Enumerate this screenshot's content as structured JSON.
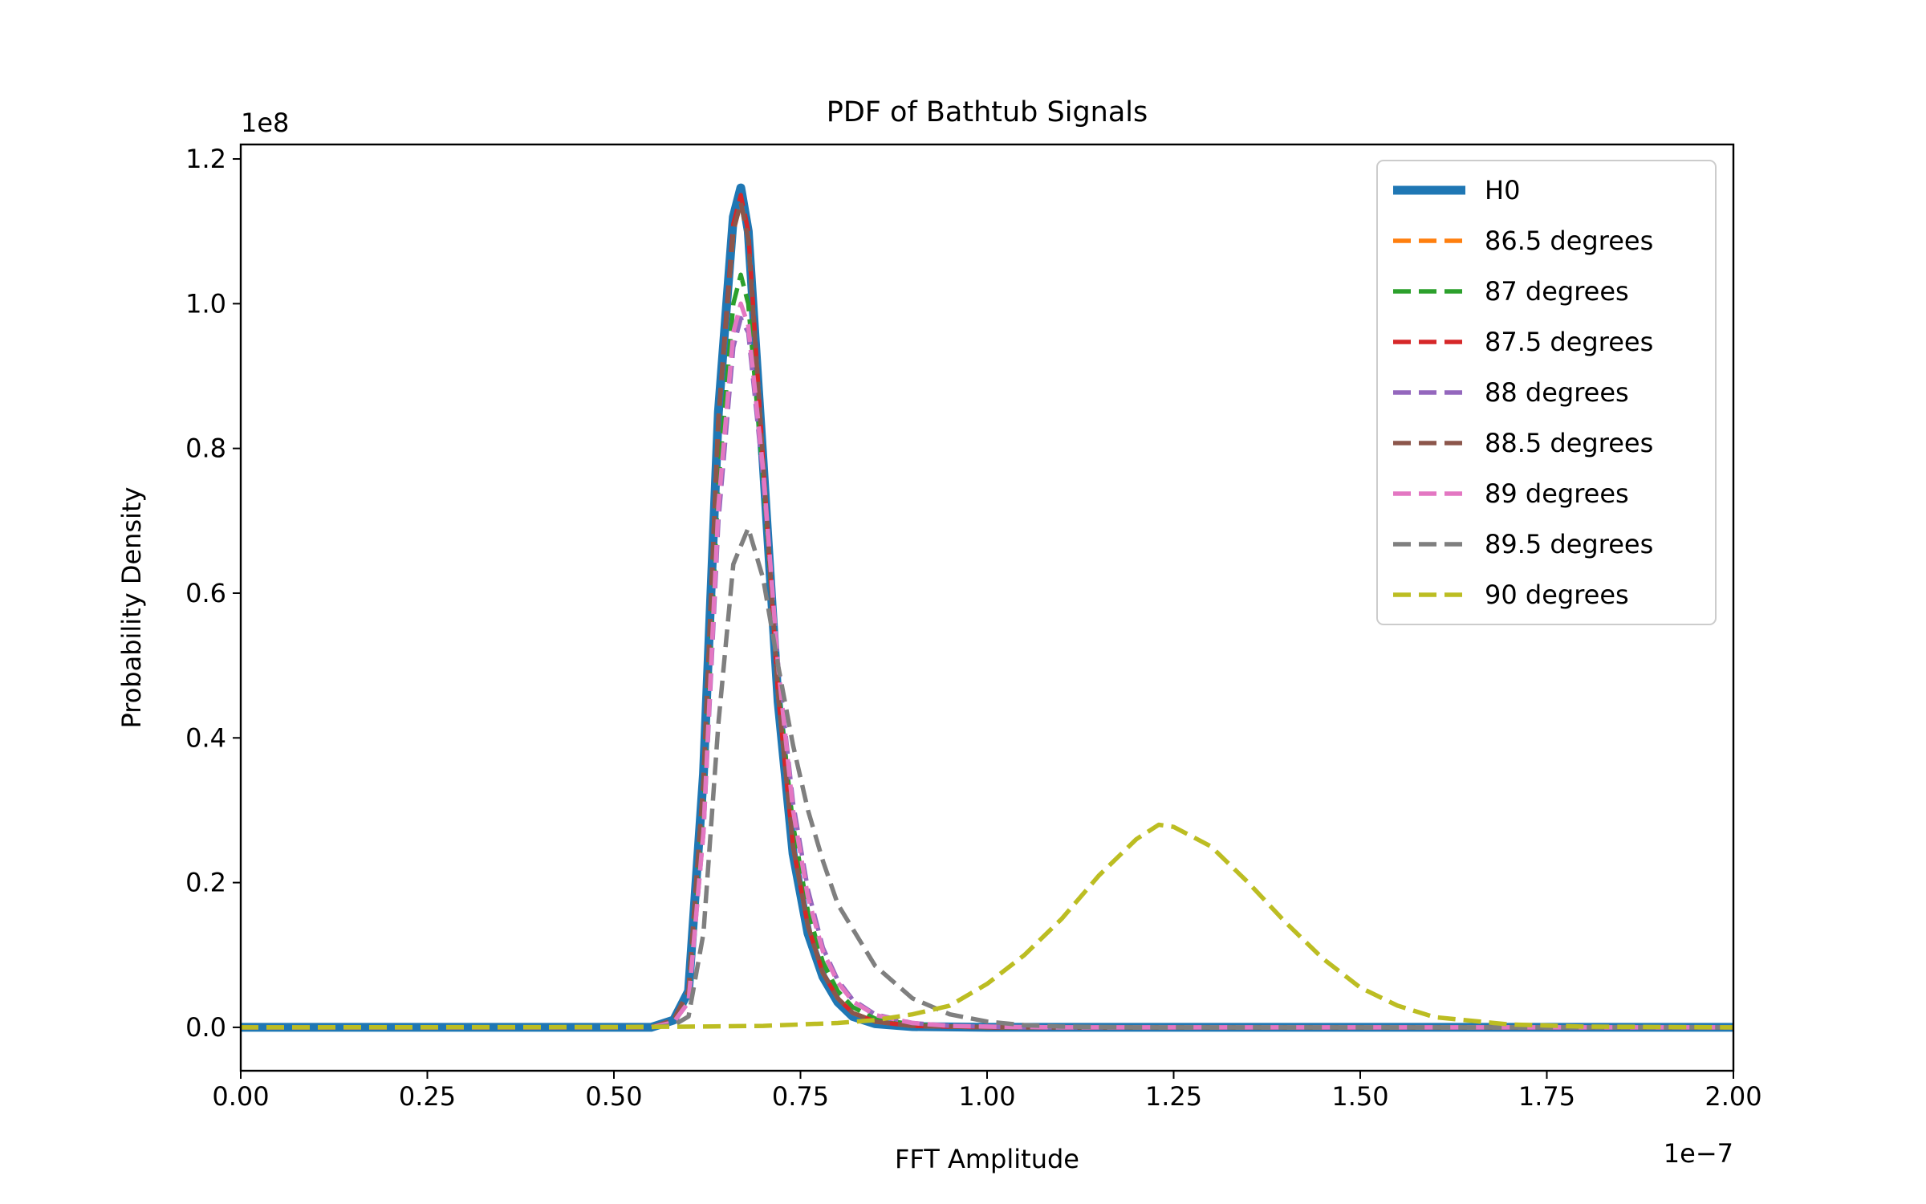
{
  "chart_data": {
    "type": "line",
    "title": "PDF of Bathtub Signals",
    "xlabel": "FFT Amplitude",
    "ylabel": "Probability Density",
    "x_offset_label": "1e−7",
    "y_offset_label": "1e8",
    "xlim": [
      0,
      2.0
    ],
    "ylim": [
      -0.06,
      1.22
    ],
    "xticks": [
      0,
      0.25,
      0.5,
      0.75,
      1.0,
      1.25,
      1.5,
      1.75,
      2.0
    ],
    "xtick_labels": [
      "0.00",
      "0.25",
      "0.50",
      "0.75",
      "1.00",
      "1.25",
      "1.50",
      "1.75",
      "2.00"
    ],
    "yticks": [
      0.0,
      0.2,
      0.4,
      0.6,
      0.8,
      1.0,
      1.2
    ],
    "ytick_labels": [
      "0.0",
      "0.2",
      "0.4",
      "0.6",
      "0.8",
      "1.0",
      "1.2"
    ],
    "grid": false,
    "legend_position": "upper right",
    "series": [
      {
        "name": "H0",
        "color": "#1f77b4",
        "style": "solid",
        "x": [
          0,
          0.55,
          0.58,
          0.6,
          0.62,
          0.64,
          0.66,
          0.67,
          0.68,
          0.7,
          0.72,
          0.74,
          0.76,
          0.78,
          0.8,
          0.82,
          0.85,
          0.9,
          1.0,
          2.0
        ],
        "y": [
          0,
          0,
          0.01,
          0.05,
          0.35,
          0.85,
          1.12,
          1.16,
          1.1,
          0.78,
          0.45,
          0.24,
          0.13,
          0.07,
          0.035,
          0.015,
          0.005,
          0.001,
          0,
          0
        ]
      },
      {
        "name": "86.5 degrees",
        "color": "#ff7f0e",
        "style": "dashed",
        "x": [
          0,
          0.55,
          0.58,
          0.6,
          0.62,
          0.64,
          0.66,
          0.67,
          0.68,
          0.7,
          0.72,
          0.74,
          0.76,
          0.78,
          0.8,
          0.82,
          0.85,
          0.9,
          0.95,
          1.0,
          2.0
        ],
        "y": [
          0,
          0,
          0.01,
          0.05,
          0.34,
          0.84,
          1.1,
          1.14,
          1.09,
          0.78,
          0.46,
          0.25,
          0.14,
          0.075,
          0.04,
          0.02,
          0.008,
          0.002,
          0.001,
          0,
          0
        ]
      },
      {
        "name": "87 degrees",
        "color": "#2ca02c",
        "style": "dashed",
        "x": [
          0,
          0.55,
          0.58,
          0.6,
          0.62,
          0.64,
          0.66,
          0.67,
          0.68,
          0.7,
          0.72,
          0.74,
          0.76,
          0.78,
          0.8,
          0.82,
          0.85,
          0.9,
          0.95,
          1.0,
          2.0
        ],
        "y": [
          0,
          0,
          0.008,
          0.04,
          0.3,
          0.75,
          1.0,
          1.04,
          1.0,
          0.76,
          0.47,
          0.28,
          0.16,
          0.09,
          0.05,
          0.028,
          0.012,
          0.004,
          0.001,
          0,
          0
        ]
      },
      {
        "name": "87.5 degrees",
        "color": "#d62728",
        "style": "dashed",
        "x": [
          0,
          0.55,
          0.58,
          0.6,
          0.62,
          0.64,
          0.66,
          0.67,
          0.68,
          0.7,
          0.72,
          0.74,
          0.76,
          0.78,
          0.8,
          0.82,
          0.85,
          0.9,
          0.95,
          1.0,
          2.0
        ],
        "y": [
          0,
          0,
          0.01,
          0.05,
          0.34,
          0.84,
          1.11,
          1.15,
          1.1,
          0.78,
          0.46,
          0.25,
          0.14,
          0.075,
          0.04,
          0.02,
          0.008,
          0.002,
          0.001,
          0,
          0
        ]
      },
      {
        "name": "88 degrees",
        "color": "#9467bd",
        "style": "dashed",
        "x": [
          0,
          0.55,
          0.58,
          0.6,
          0.62,
          0.64,
          0.66,
          0.67,
          0.68,
          0.7,
          0.72,
          0.74,
          0.76,
          0.78,
          0.8,
          0.82,
          0.85,
          0.9,
          0.95,
          1.0,
          1.05,
          2.0
        ],
        "y": [
          0,
          0,
          0.007,
          0.035,
          0.27,
          0.7,
          0.94,
          0.98,
          0.96,
          0.76,
          0.5,
          0.31,
          0.19,
          0.11,
          0.065,
          0.038,
          0.018,
          0.006,
          0.002,
          0.001,
          0,
          0
        ]
      },
      {
        "name": "88.5 degrees",
        "color": "#8c564b",
        "style": "dashed",
        "x": [
          0,
          0.55,
          0.58,
          0.6,
          0.62,
          0.64,
          0.66,
          0.67,
          0.68,
          0.7,
          0.72,
          0.74,
          0.76,
          0.78,
          0.8,
          0.82,
          0.85,
          0.9,
          0.95,
          1.0,
          2.0
        ],
        "y": [
          0,
          0,
          0.01,
          0.05,
          0.34,
          0.84,
          1.1,
          1.14,
          1.09,
          0.78,
          0.46,
          0.25,
          0.14,
          0.075,
          0.04,
          0.02,
          0.008,
          0.002,
          0.001,
          0,
          0
        ]
      },
      {
        "name": "89 degrees",
        "color": "#e377c2",
        "style": "dashed",
        "x": [
          0,
          0.55,
          0.58,
          0.6,
          0.62,
          0.64,
          0.66,
          0.67,
          0.68,
          0.7,
          0.72,
          0.74,
          0.76,
          0.78,
          0.8,
          0.82,
          0.85,
          0.9,
          0.95,
          1.0,
          1.05,
          1.1,
          2.0
        ],
        "y": [
          0,
          0,
          0.007,
          0.035,
          0.27,
          0.72,
          0.96,
          1.0,
          0.97,
          0.77,
          0.5,
          0.3,
          0.18,
          0.105,
          0.062,
          0.036,
          0.017,
          0.006,
          0.002,
          0.001,
          0.0005,
          0,
          0
        ]
      },
      {
        "name": "89.5 degrees",
        "color": "#7f7f7f",
        "style": "dashed",
        "x": [
          0,
          0.55,
          0.58,
          0.6,
          0.62,
          0.64,
          0.66,
          0.68,
          0.7,
          0.72,
          0.74,
          0.76,
          0.78,
          0.8,
          0.85,
          0.9,
          0.95,
          1.0,
          1.05,
          1.1,
          1.2,
          2.0
        ],
        "y": [
          0,
          0,
          0.003,
          0.015,
          0.13,
          0.42,
          0.64,
          0.69,
          0.62,
          0.5,
          0.39,
          0.3,
          0.23,
          0.17,
          0.085,
          0.04,
          0.018,
          0.008,
          0.003,
          0.001,
          0,
          0
        ]
      },
      {
        "name": "90 degrees",
        "color": "#bcbd22",
        "style": "dashed",
        "x": [
          0,
          0.5,
          0.6,
          0.7,
          0.8,
          0.85,
          0.9,
          0.95,
          1.0,
          1.05,
          1.1,
          1.15,
          1.2,
          1.23,
          1.25,
          1.3,
          1.35,
          1.4,
          1.45,
          1.5,
          1.55,
          1.6,
          1.7,
          1.8,
          2.0
        ],
        "y": [
          0,
          0.0005,
          0.001,
          0.002,
          0.006,
          0.01,
          0.018,
          0.03,
          0.06,
          0.1,
          0.15,
          0.21,
          0.26,
          0.28,
          0.277,
          0.25,
          0.2,
          0.145,
          0.095,
          0.055,
          0.03,
          0.014,
          0.004,
          0.001,
          0
        ]
      }
    ]
  }
}
